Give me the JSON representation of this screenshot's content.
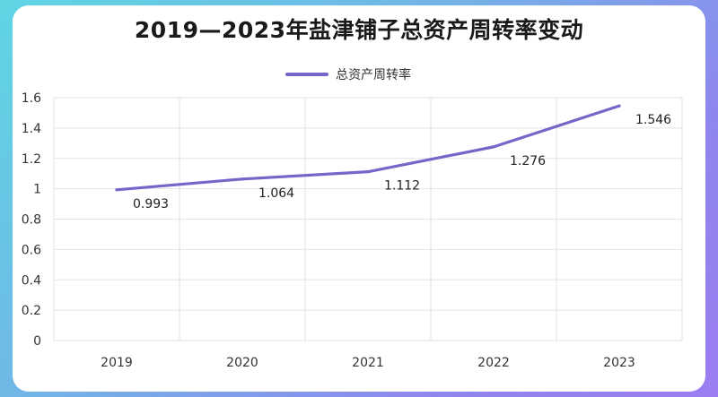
{
  "title": "2019—2023年盐津铺子总资产周转率变动",
  "colors": {
    "series": "#7367c9",
    "grid": "#e3e3ea"
  },
  "chart_data": {
    "type": "line",
    "title": "2019—2023年盐津铺子总资产周转率变动",
    "categories": [
      "2019",
      "2020",
      "2021",
      "2022",
      "2023"
    ],
    "series": [
      {
        "name": "总资产周转率",
        "values": [
          0.993,
          1.064,
          1.112,
          1.276,
          1.546
        ],
        "labels": [
          "0.993",
          "1.064",
          "1.112",
          "1.276",
          "1.546"
        ]
      }
    ],
    "ylim": [
      0,
      1.6
    ],
    "yticks": [
      "0",
      "0.2",
      "0.4",
      "0.6",
      "0.8",
      "1",
      "1.2",
      "1.4",
      "1.6"
    ],
    "grid": true,
    "legend": "top-center"
  }
}
